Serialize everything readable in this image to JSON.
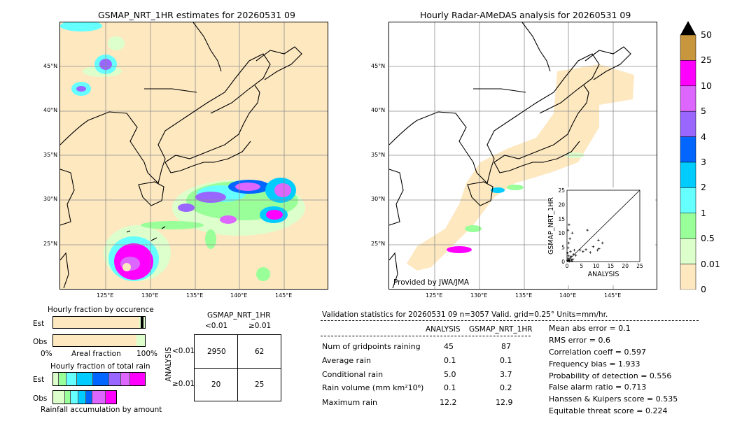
{
  "left_map": {
    "title": "GSMAP_NRT_1HR estimates for 20260531 09",
    "lat_labels": [
      "45°N",
      "40°N",
      "35°N",
      "30°N",
      "25°N"
    ],
    "lon_labels": [
      "125°E",
      "130°E",
      "135°E",
      "140°E",
      "145°E"
    ]
  },
  "right_map": {
    "title": "Hourly Radar-AMeDAS analysis for 20260531 09",
    "lat_labels": [
      "45°N",
      "40°N",
      "35°N",
      "30°N",
      "25°N"
    ],
    "lon_labels": [
      "125°E",
      "130°E",
      "135°E",
      "140°E",
      "145°E"
    ],
    "credit": "Provided by JWA/JMA"
  },
  "colorbar": {
    "labels": [
      "50",
      "25",
      "10",
      "5",
      "4",
      "3",
      "2",
      "1",
      "0.5",
      "0.01",
      "0"
    ],
    "colors": [
      "#c8963c",
      "#ff00ff",
      "#dd66ff",
      "#9966ff",
      "#0066ff",
      "#00ccff",
      "#66ffff",
      "#99ff99",
      "#ddffcc",
      "#fde8c0"
    ]
  },
  "fraction_occurrence": {
    "title": "Hourly fraction by occurence",
    "rows": [
      "Est",
      "Obs"
    ],
    "axis_left": "0%",
    "axis_mid": "Areal fraction",
    "axis_right": "100%"
  },
  "fraction_total": {
    "title": "Hourly fraction of total rain",
    "rows": [
      "Est",
      "Obs"
    ],
    "footer": "Rainfall accumulation by amount"
  },
  "contingency": {
    "title": "GSMAP_NRT_1HR",
    "col_headers": [
      "<0.01",
      "≥0.01"
    ],
    "row_axis": "ANALYSIS",
    "row_headers": [
      "<0.01",
      "≥0.01"
    ],
    "cells": [
      [
        "2950",
        "62"
      ],
      [
        "20",
        "25"
      ]
    ]
  },
  "validation": {
    "header": "Validation statistics for 20260531 09  n=3057 Valid. grid=0.25° Units=mm/hr.",
    "col_analysis": "ANALYSIS",
    "col_gsmap": "GSMAP_NRT_1HR",
    "rows": [
      {
        "label": "Num of gridpoints raining",
        "analysis": "45",
        "gsmap": "87"
      },
      {
        "label": "Average rain",
        "analysis": "0.1",
        "gsmap": "0.1"
      },
      {
        "label": "Conditional rain",
        "analysis": "5.0",
        "gsmap": "3.7"
      },
      {
        "label": "Rain volume (mm km²10⁶)",
        "analysis": "0.1",
        "gsmap": "0.2"
      },
      {
        "label": "Maximum rain",
        "analysis": "12.2",
        "gsmap": "12.9"
      }
    ],
    "scores": [
      "Mean abs error =    0.1",
      "RMS error =    0.6",
      "Correlation coeff =  0.597",
      "Frequency bias =  1.933",
      "Probability of detection =  0.556",
      "False alarm ratio =  0.713",
      "Hanssen & Kuipers score =  0.535",
      "Equitable threat score =  0.224"
    ]
  },
  "chart_data": {
    "type": "scatter",
    "title": "",
    "xlabel": "ANALYSIS",
    "ylabel": "GSMAP_NRT_1HR",
    "xlim": [
      0,
      25
    ],
    "ylim": [
      0,
      25
    ],
    "ticks": [
      "0",
      "5",
      "10",
      "15",
      "20",
      "25"
    ],
    "points": [
      [
        0.2,
        0.3
      ],
      [
        0.4,
        0.2
      ],
      [
        0.6,
        0.5
      ],
      [
        0.3,
        1.0
      ],
      [
        0.8,
        0.4
      ],
      [
        1.0,
        1.2
      ],
      [
        0.5,
        2.0
      ],
      [
        1.5,
        0.6
      ],
      [
        0.2,
        3.0
      ],
      [
        1.2,
        3.5
      ],
      [
        0.4,
        4.8
      ],
      [
        2.0,
        0.8
      ],
      [
        0.6,
        6.5
      ],
      [
        1.0,
        8.0
      ],
      [
        0.3,
        11.0
      ],
      [
        0.7,
        12.9
      ],
      [
        1.8,
        10.0
      ],
      [
        2.5,
        4.0
      ],
      [
        3.0,
        2.2
      ],
      [
        4.5,
        4.0
      ],
      [
        5.5,
        3.5
      ],
      [
        6.5,
        4.2
      ],
      [
        7.0,
        11.0
      ],
      [
        8.0,
        3.2
      ],
      [
        9.0,
        5.2
      ],
      [
        10.5,
        4.0
      ],
      [
        11.0,
        4.5
      ],
      [
        12.2,
        6.5
      ],
      [
        10.8,
        7.5
      ],
      [
        1.4,
        1.8
      ],
      [
        2.2,
        2.5
      ],
      [
        0.9,
        0.1
      ],
      [
        1.7,
        0.2
      ]
    ]
  }
}
